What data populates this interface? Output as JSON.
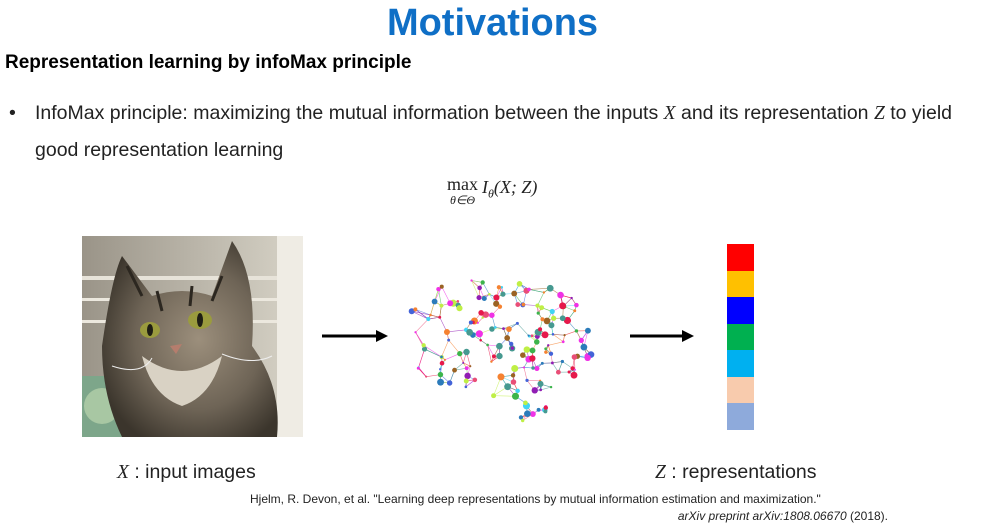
{
  "slide": {
    "title": "Motivations",
    "subtitle": "Representation learning by infoMax principle",
    "bullet": {
      "marker": "•",
      "part1": "InfoMax principle: maximizing the mutual information between the inputs ",
      "var_x": "X",
      "part2": " and its representation ",
      "var_z": "Z",
      "part3": " to yield good representation learning"
    },
    "formula": {
      "operator": "max",
      "subscript": "θ∈Θ",
      "expression": "I",
      "expression_sub": "θ",
      "expression_args": "(X; Z)"
    },
    "captions": {
      "input_var": "X",
      "input_text": " : input images",
      "output_var": "Z",
      "output_text": " : representations"
    },
    "citation": {
      "line1": "Hjelm, R. Devon, et al. \"Learning deep representations by mutual information estimation and maximization.\"",
      "line2_italic": "arXiv preprint arXiv:1808.06670",
      "line2_rest": " (2018)."
    },
    "representation_colors": [
      "#ff0000",
      "#ffc000",
      "#0000ff",
      "#00b050",
      "#00b0f0",
      "#f8cbad",
      "#8eaadb"
    ],
    "title_color": "#0f6fc6"
  }
}
